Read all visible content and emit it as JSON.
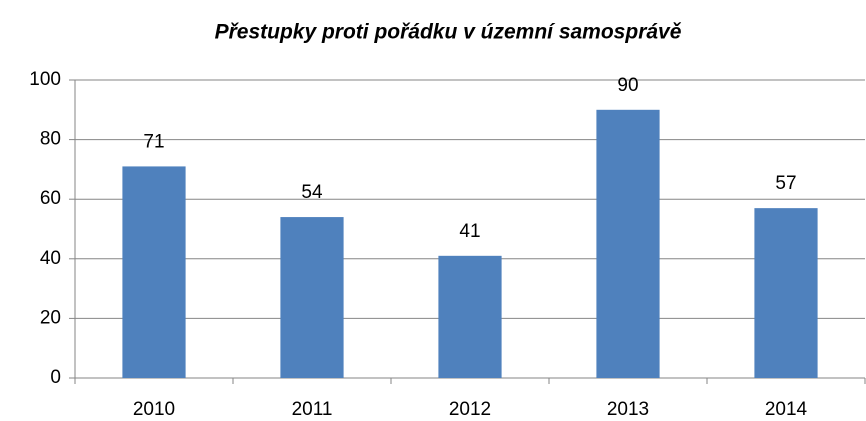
{
  "chart_data": {
    "type": "bar",
    "title": "Přestupky proti pořádku v územní samosprávě",
    "categories": [
      "2010",
      "2011",
      "2012",
      "2013",
      "2014"
    ],
    "values": [
      71,
      54,
      41,
      90,
      57
    ],
    "color": "#4f81bd",
    "ylim": [
      0,
      100
    ],
    "yticks": [
      0,
      20,
      40,
      60,
      80,
      100
    ],
    "grid": true
  }
}
